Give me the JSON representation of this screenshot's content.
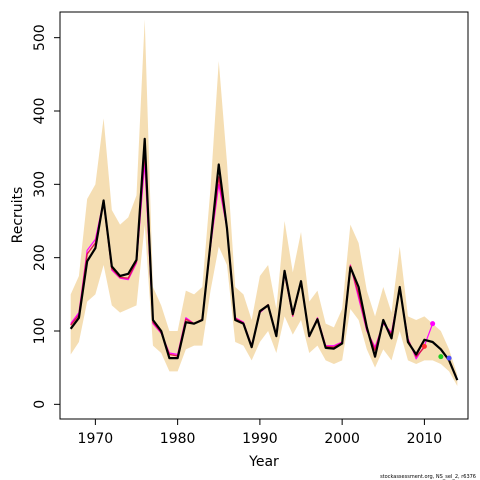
{
  "chart_data": {
    "type": "line",
    "xlabel": "Year",
    "ylabel": "Recruits",
    "xlim": [
      1965.7,
      2015.3
    ],
    "ylim": [
      -20,
      535
    ],
    "x_ticks": [
      1970,
      1980,
      1990,
      2000,
      2010
    ],
    "x_tick_labels": [
      "1970",
      "1980",
      "1990",
      "2000",
      "2010"
    ],
    "y_ticks": [
      0,
      100,
      200,
      300,
      400,
      500
    ],
    "y_tick_labels": [
      "0",
      "100",
      "200",
      "300",
      "400",
      "500"
    ],
    "grid": false,
    "credit": "stockassessment.org, NS_sel_2, r6376",
    "colors": {
      "band": "#f5deb3",
      "estimate": "#000000",
      "retro": "#dd1a4a",
      "marker1": "#ff00ff",
      "marker2": "#ff3030",
      "marker3": "#22cc22",
      "marker4": "#5050ff"
    },
    "band": {
      "x": [
        1967,
        1968,
        1969,
        1970,
        1971,
        1972,
        1973,
        1974,
        1975,
        1976,
        1977,
        1978,
        1979,
        1980,
        1981,
        1982,
        1983,
        1984,
        1985,
        1986,
        1987,
        1988,
        1989,
        1990,
        1991,
        1992,
        1993,
        1994,
        1995,
        1996,
        1997,
        1998,
        1999,
        2000,
        2001,
        2002,
        2003,
        2004,
        2005,
        2006,
        2007,
        2008,
        2009,
        2010,
        2011,
        2012,
        2013,
        2014
      ],
      "upper": [
        150,
        175,
        280,
        300,
        390,
        265,
        245,
        255,
        285,
        525,
        160,
        135,
        100,
        100,
        155,
        150,
        160,
        295,
        468,
        330,
        160,
        150,
        115,
        175,
        190,
        130,
        250,
        180,
        235,
        140,
        155,
        110,
        105,
        130,
        245,
        220,
        155,
        120,
        160,
        125,
        215,
        120,
        115,
        120,
        110,
        100,
        75,
        40
      ],
      "lower": [
        68,
        85,
        140,
        150,
        190,
        135,
        125,
        130,
        135,
        245,
        80,
        70,
        45,
        45,
        75,
        80,
        80,
        155,
        215,
        190,
        85,
        80,
        60,
        85,
        100,
        70,
        120,
        95,
        115,
        70,
        80,
        60,
        55,
        60,
        130,
        115,
        75,
        50,
        75,
        60,
        100,
        60,
        55,
        60,
        60,
        55,
        45,
        25
      ]
    },
    "series": [
      {
        "x": [
          1967,
          1968,
          1969,
          1970,
          1971,
          1972,
          1973,
          1974,
          1975,
          1976,
          1977,
          1978,
          1979,
          1980,
          1981,
          1982,
          1983,
          1984,
          1985,
          1986,
          1987,
          1988,
          1989,
          1990,
          1991,
          1992,
          1993,
          1994,
          1995,
          1996,
          1997,
          1998,
          1999,
          2000,
          2001,
          2002,
          2003,
          2004,
          2005,
          2006,
          2007,
          2008,
          2009,
          2010,
          2011,
          2012,
          2013,
          2014
        ],
        "values": [
          103,
          118,
          195,
          213,
          278,
          188,
          175,
          178,
          197,
          362,
          115,
          100,
          63,
          63,
          112,
          110,
          115,
          220,
          327,
          240,
          115,
          110,
          78,
          127,
          135,
          93,
          182,
          123,
          168,
          93,
          116,
          77,
          76,
          83,
          187,
          160,
          105,
          65,
          115,
          90,
          160,
          85,
          68,
          88,
          85,
          75,
          60,
          33
        ]
      },
      {
        "x": [
          1967,
          1968,
          1969,
          1970,
          1971,
          1972,
          1973,
          1974,
          1975,
          1976,
          1977,
          1978,
          1979,
          1980,
          1981,
          1982,
          1983,
          1984,
          1985,
          1986,
          1987,
          1988,
          1989,
          1990,
          1991,
          1992,
          1993,
          1994,
          1995,
          1996,
          1997,
          1998,
          1999,
          2000,
          2001,
          2002,
          2003,
          2004,
          2005,
          2006,
          2007,
          2008,
          2009,
          2010,
          2011
        ],
        "values": [
          110,
          125,
          210,
          225,
          278,
          183,
          172,
          170,
          193,
          330,
          110,
          97,
          70,
          68,
          118,
          110,
          115,
          215,
          300,
          240,
          118,
          112,
          80,
          125,
          135,
          95,
          178,
          120,
          168,
          92,
          118,
          80,
          80,
          85,
          190,
          145,
          100,
          78,
          110,
          98,
          158,
          90,
          62,
          80,
          110
        ]
      },
      {
        "x": [
          1967,
          1968,
          1969,
          1970,
          1971,
          1972,
          1973,
          1974,
          1975,
          1976,
          1977,
          1978,
          1979,
          1980,
          1981,
          1982,
          1983,
          1984,
          1985,
          1986,
          1987,
          1988,
          1989,
          1990,
          1991,
          1992,
          1993,
          1994,
          1995,
          1996,
          1997,
          1998,
          1999,
          2000,
          2001,
          2002,
          2003,
          2004,
          2005,
          2006,
          2007,
          2008,
          2009,
          2010
        ],
        "values": [
          108,
          122,
          205,
          220,
          275,
          185,
          173,
          172,
          195,
          345,
          112,
          98,
          68,
          66,
          116,
          110,
          116,
          218,
          310,
          240,
          117,
          111,
          79,
          126,
          136,
          94,
          180,
          121,
          168,
          93,
          117,
          79,
          78,
          84,
          189,
          150,
          102,
          74,
          112,
          95,
          159,
          88,
          65,
          78
        ]
      }
    ],
    "markers": [
      {
        "x": 2011,
        "y": 110,
        "color": "marker1"
      },
      {
        "x": 2010,
        "y": 79,
        "color": "marker2"
      },
      {
        "x": 2012,
        "y": 65,
        "color": "marker3"
      },
      {
        "x": 2013,
        "y": 63,
        "color": "marker4"
      }
    ]
  }
}
